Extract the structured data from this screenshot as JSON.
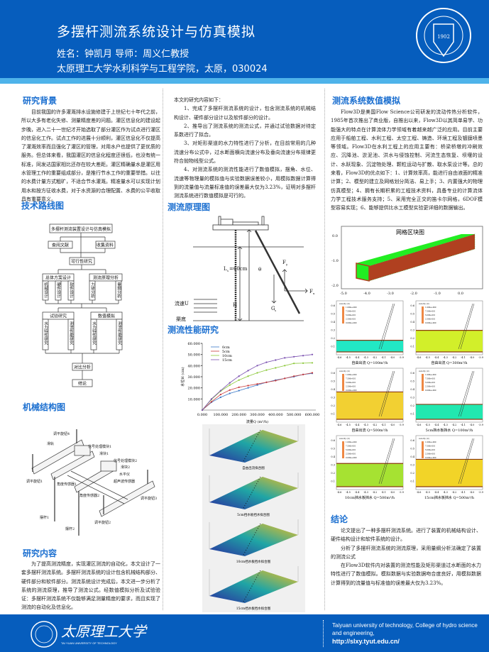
{
  "header": {
    "title": "多摆杆测流系统设计与仿真模拟",
    "authors": "姓名：钟凯月  导师：周义仁教授",
    "affiliation": "太原理工大学水利科学与工程学院，太原，030024",
    "logo": {
      "ring_text": "TAIYUAN UNIVERSITY OF TECHNOLOGY",
      "year": "1902",
      "script": "太原理工大学"
    }
  },
  "colors": {
    "brand_blue": "#065dbd",
    "stripe_blue": "#4eb3ea",
    "heading_blue": "#1b6fd0"
  },
  "background": {
    "heading": "研究背景",
    "text": "目前我国的许多灌溉排水设施修建于上世纪七十年代之前，所以大多有老化失修、测量精度差的问题。灌区信息化的建设起步晚，进入二十一世纪才开始选取了部分灌区作为试点进行灌区的信息化工作。试点工作的进展十分顺利，灌区信息化不仅提高了灌溉效率而且强化了灌区的管理，对用水户也提供了更优质的服务。但总体来看，我国灌区的信息化程度还很低，也没有统一标准，同发达国家相比还存在较大差距。灌区精确量水是灌区用水管理工作的重要组成部分，是推行节水工作的重要举措。以往的水费计量方式粗旷，不适合节水灌溉。精准量水可以实现计划用水和按方征收水费，对于水资源的合理配置、水费的公平收取具有重要意义。"
  },
  "roadmap": {
    "heading": "技术路线图",
    "nodes": {
      "top": "多摆杆测流装置设计与仿真模拟",
      "lit": "查阅文献",
      "collect": "收集资料",
      "feasibility": "可行性研究",
      "overall": "总体方案设计",
      "principle": "测流原理分析",
      "mech": "机械设计",
      "hw": "硬件设计",
      "sw": "软件设计",
      "torque": "力矩分析",
      "dim": "量纲分析",
      "test": "试验研究",
      "sim": "数值模拟",
      "t_hyd": "水力特性研究",
      "t_perf": "测流性能研究",
      "s_hyd": "水力特性研究",
      "s_perf": "测流性能研究",
      "compare": "对比分析",
      "conclusion": "结论"
    }
  },
  "mechanism": {
    "heading": "机械结构图",
    "labels": {
      "knob4": "调平旋钮4",
      "rail": "滑轨",
      "sig1": "信号处理模块1",
      "slider1": "滑块1",
      "sig2": "信号处理模块2",
      "slider2": "滑块2",
      "level": "水平仪",
      "ultra": "超声波传感器",
      "knob1": "调平旋钮1",
      "angle1": "角度传感器1",
      "angle2": "角度传感器2",
      "knob3": "调平旋钮3",
      "knob2": "调平旋钮2",
      "rod1": "摆杆1",
      "rod2": "摆杆2"
    }
  },
  "content": {
    "heading": "研究内容",
    "text": "为了提高测流精度，实现灌区测流的自动化，本文设计了一套多摆杆测流系统。多摆杆测流系统的设计包含机械结构部分、硬件部分和软件部分。测流系统设计完成后，本文进一步分析了系统的测流原理，推导了测流公式。经数值模拟分析及试验验证：多摆杆测流系统不仅能够满足测量精度的要求，而且实现了测流的自动化及信息化。"
  },
  "middle": {
    "intro": "本文的研究内容如下：",
    "items": [
      "1、完成了多摆杆测流系统的设计，包含测流系统的机械结构设计、硬件部分设计以及软件部分的设计。",
      "2、推导出了测流系统的测流公式，并通过试验数据对待定系数进行了拟合。",
      "3、对矩形渠道的水力特性进行了分析，在目前常用的几种流速分布公式中，过水断面横向流速分布及垂向流速分布规律更符合抛物线型公式。",
      "4、对测流系统的测流性能进行了数值模拟，摆角、水位、流速等物理量的模拟值与实验数据误差较小，用模拟数据计算得到的流量值与流量标准值的误差最大仅为3.23%，证明对多摆杆测流系统进行数值模拟是可行的。"
    ],
    "principle": {
      "heading": "测流原理图",
      "length": "L",
      "length_sub": "s",
      "length_val": "=60cm",
      "theta": "θ",
      "fy": "F",
      "fy_sub": "y",
      "fx": "F",
      "fx_sub": "x",
      "g": "G",
      "g_sub": "s",
      "h": "H",
      "flow": "流速U",
      "bed": "渠底"
    },
    "performance": {
      "heading": "测流性能研究"
    },
    "surfaces": [
      "自由出流拟合图",
      "5cm挡水板挡水拟合图",
      "10cm挡水板挡水拟合图",
      "15cm挡水板挡水拟合图"
    ]
  },
  "chart_data": {
    "type": "line",
    "x": [
      0,
      50,
      100,
      150,
      200,
      250,
      300,
      350,
      400,
      450,
      500,
      550,
      600
    ],
    "series": [
      {
        "name": "0cm",
        "color": "#3a78c8",
        "values": [
          0,
          7,
          11.5,
          15,
          17.5,
          20,
          22.5,
          25,
          27,
          28.5,
          30,
          32,
          33
        ]
      },
      {
        "name": "5cm",
        "color": "#c83a3a",
        "values": [
          0,
          7.5,
          14,
          18,
          20.5,
          22,
          23.5,
          25,
          26.5,
          28.5,
          30.5,
          32,
          33.5
        ]
      },
      {
        "name": "10cm",
        "color": "#8cc83a",
        "values": [
          0,
          9.5,
          17,
          22.5,
          27,
          30.5,
          33.5,
          36,
          38,
          40,
          42,
          42.2,
          42.5
        ]
      },
      {
        "name": "15cm",
        "color": "#7a50b0",
        "values": [
          0,
          10,
          17.5,
          24.5,
          30.5,
          35.5,
          40,
          43,
          45,
          47,
          48,
          49,
          50
        ]
      }
    ],
    "xlabel": "流量Q (m³/h)",
    "ylabel": "水位H (cm)",
    "xlim": [
      0,
      600
    ],
    "ylim": [
      0,
      60
    ],
    "xticks": [
      "0.000",
      "100.000",
      "200.000",
      "300.000",
      "400.000",
      "500.000",
      "600.000"
    ],
    "yticks": [
      "10.000",
      "20.000",
      "30.000",
      "40.000",
      "50.000",
      "60.000"
    ],
    "legend": "top-left",
    "grid": false
  },
  "right": {
    "heading": "测流系统数值模拟",
    "text": "Flow3D是美国Flow Science公司研发的流动传热分析软件，1985年首次推出了商业版，自推出以来，Flow3D以其简单易学、功能强大的特点在计算流体力学领域有着越来越广泛的应用。目前主要应用于船舶工程、水利工程、太空工程、铸造、环境工程及镀膜喷墨等领域。Flow3D在水利工程上的应用主要有：桥梁桥墩的冲刷效应、沉降池、淤泥池、洪水与侵蚀控制、河流生态恢复、坝堰的设计、水跃现象、沉淀物处理、颗粒运动与扩散、取水泵设计等。总的来看，Flow3D的优点如下：1、计算效率高，能进行自由液面的精准计算；2、模型的建立及网格划分简洁、易上手；3、内置强大的物理仿真模型；4、拥有长期积累的工程技术资料，具备专业的计算流体力学工程技术服务支持；5、采用完全正交的笛卡尔网格，6DOF模型容易实现；6、能够提供比水工模型实验更详细的数据输出。",
    "mesh": {
      "title": "网格区块图",
      "xticks": [
        "-5.0",
        "-4.0",
        "-3.0",
        "-2.0",
        "-1.0",
        "0.0"
      ],
      "yticks": [
        "0.0",
        "-1.0",
        "-2.0"
      ]
    },
    "sims": [
      {
        "caption": "自由出流 Q=100m³/h",
        "level": 0.14,
        "color": "#22e8c4"
      },
      {
        "caption": "自由出流 Q=300m³/h",
        "level": 0.26,
        "color": "#d2ef2a"
      },
      {
        "caption": "自由出流 Q=500m³/h",
        "level": 0.33,
        "color": "#f2d032"
      },
      {
        "caption": "5cm挡水板挡水 Q=100m³/h",
        "level": 0.18,
        "color": "#22e8b0"
      },
      {
        "caption": "10cm挡水板挡水 Q=500m³/h",
        "level": 0.28,
        "color": "#a6e232"
      },
      {
        "caption": "15cm挡水板挡水 Q=500m³/h",
        "level": 0.33,
        "color": "#f2d428"
      }
    ],
    "sim_legend": {
      "title": "velocity (U)",
      "values": [
        "1.000e+000",
        "7.500e-001",
        "5.000e-001",
        "2.500e-001",
        "0.000e+000"
      ]
    },
    "sim_xticks": [
      "-4.6",
      "-4.5",
      "-4.4",
      "-4.3",
      "-4.2",
      "-4.1",
      "-4.0",
      "-3.9"
    ],
    "sim_yticks": [
      "0.6",
      "0.5",
      "0.4",
      "0.3",
      "0.2",
      "0.1"
    ],
    "conclusion_heading": "结论",
    "conclusion": [
      "论文提出了一种多摆杆测流系统。进行了装置的机械结构设计、硬件结构设计和软件系统的设计。",
      "分析了多摆杆测流系统的测流原理，采用量纲分析法确定了装置的测流公式",
      "在Flow3D软件内对装置的测流性能及矩形渠道过水断面的水力特性进行了数值模拟。模拟数据与实验数据吻合度良好，用模拟数据计算得到的流量值与标准值的误差最大仅为3.23%。"
    ]
  },
  "footer": {
    "logo_script": "太原理工大学",
    "logo_en": "TAI YUAN UNIVERSITY OF TECHNOLOGY",
    "line1": "Taiyuan university of technology, College of hydro science and engineering,",
    "url": "http://slxy.tyut.edu.cn/"
  }
}
